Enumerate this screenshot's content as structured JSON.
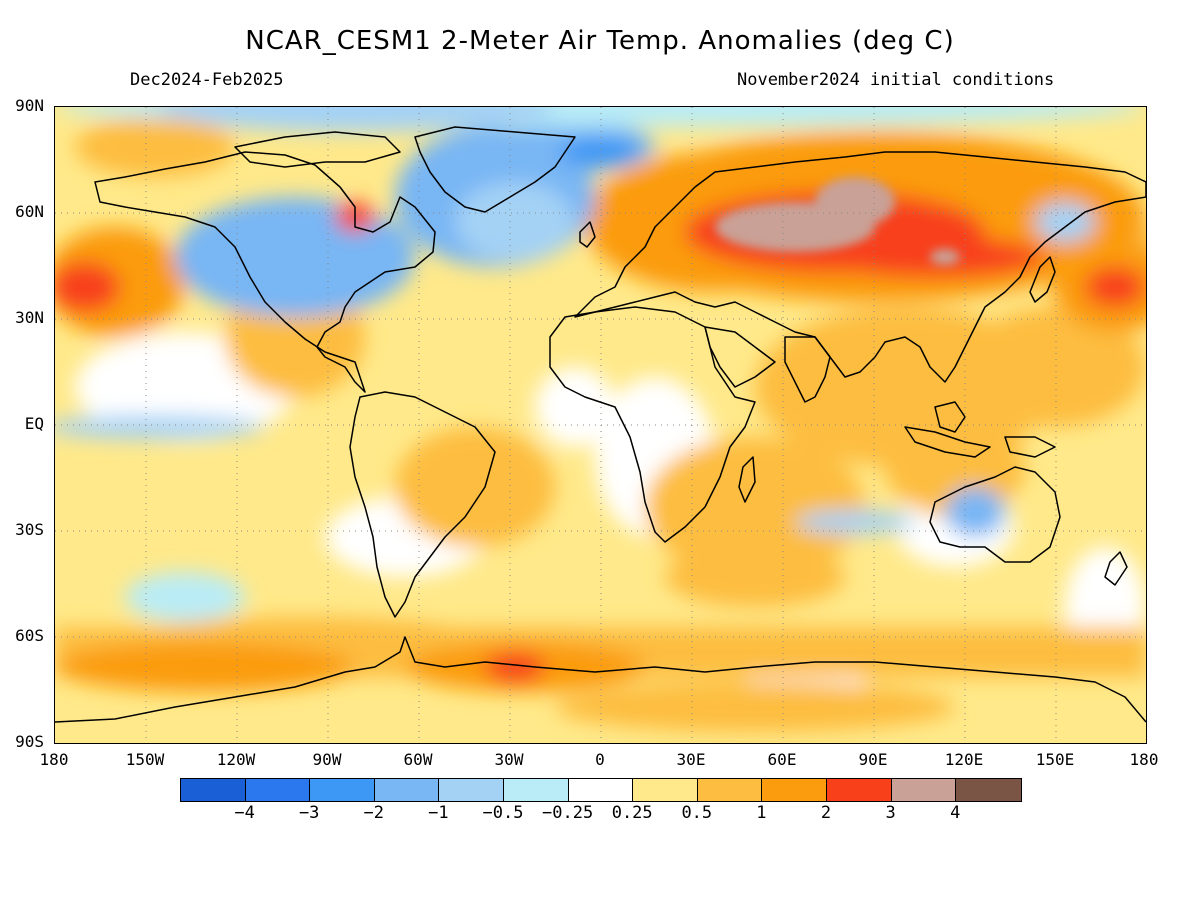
{
  "title": "NCAR_CESM1 2-Meter Air Temp. Anomalies (deg C)",
  "period": "Dec2024-Feb2025",
  "init": "November2024 initial conditions",
  "lat_labels": [
    "90N",
    "60N",
    "30N",
    "EQ",
    "30S",
    "60S",
    "90S"
  ],
  "lon_labels": [
    "180",
    "150W",
    "120W",
    "90W",
    "60W",
    "30W",
    "0",
    "30E",
    "60E",
    "90E",
    "120E",
    "150E",
    "180"
  ],
  "colorbar": {
    "colors": [
      "#1a5fd6",
      "#2b78ee",
      "#3d97f5",
      "#78b6f4",
      "#a4d2f5",
      "#b9ecf6",
      "#ffffff",
      "#ffe98a",
      "#fdbd40",
      "#fb9b0e",
      "#f8401a",
      "#c9a196",
      "#7a5545"
    ],
    "labels": [
      "-4",
      "-3",
      "-2",
      "-1",
      "-0.5",
      "-0.25",
      "0.25",
      "0.5",
      "1",
      "2",
      "3",
      "4"
    ]
  },
  "map": {
    "projection": "cylindrical-equidistant",
    "region": "global",
    "lat_range": [
      -90,
      90
    ],
    "lon_range": [
      -180,
      180
    ],
    "features": [
      "coastlines",
      "dotted lat/lon grid",
      "filled anomaly contours"
    ]
  }
}
